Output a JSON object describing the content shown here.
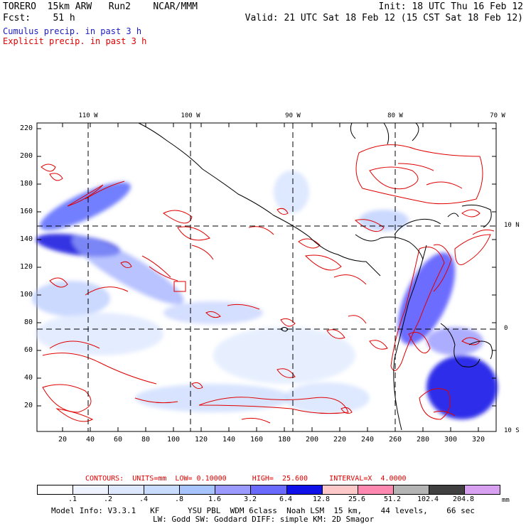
{
  "header": {
    "line1_left": "TORERO  15km ARW   Run2    NCAR/MMM",
    "line1_right": "Init: 18 UTC Thu 16 Feb 12",
    "line2_left": "Fcst:    51 h",
    "line2_right": "Valid: 21 UTC Sat 18 Feb 12 (15 CST Sat 18 Feb 12)",
    "legend_cumulus": "Cumulus precip. in past 3 h",
    "legend_explicit": "Explicit precip. in past 3 h"
  },
  "map": {
    "lon_labels": [
      "110 W",
      "100 W",
      "90 W",
      "80 W",
      "70 W"
    ],
    "lat_labels": [
      "10 N",
      "0",
      "10 S"
    ],
    "y_ticks": [
      "220",
      "200",
      "180",
      "160",
      "140",
      "120",
      "100",
      "80",
      "60",
      "40",
      "20"
    ],
    "x_ticks": [
      "20",
      "40",
      "60",
      "80",
      "100",
      "120",
      "140",
      "160",
      "180",
      "200",
      "220",
      "240",
      "260",
      "280",
      "300",
      "320"
    ],
    "colors": {
      "blue_dark": "#0000e0",
      "blue_mid": "#6a6aff",
      "blue_light": "#c8d8ff",
      "contour_red": "#e00000"
    }
  },
  "footer": {
    "contours_label": "CONTOURS:  UNITS=mm  LOW= 0.10000      HIGH=  25.600     INTERVAL=X  4.0000",
    "colorbar_labels": [
      ".1",
      ".2",
      ".4",
      ".8",
      "1.6",
      "3.2",
      "6.4",
      "12.8",
      "25.6",
      "51.2",
      "102.4",
      "204.8"
    ],
    "colorbar_unit": "mm",
    "colorbar_colors": [
      "#ffffff",
      "#eef3ff",
      "#dde8ff",
      "#c8dcff",
      "#a8c4ff",
      "#9a9aff",
      "#6a6aff",
      "#1010e8",
      "#ffc8c8",
      "#ff88b0",
      "#b4b4b4",
      "#404040",
      "#d8a0f0"
    ],
    "model_info_1": "Model Info: V3.3.1   KF      YSU PBL  WDM 6class  Noah LSM  15 km,    44 levels,    66 sec",
    "model_info_2": "LW: Godd SW: Goddard DIFF: simple KM: 2D Smagor"
  }
}
